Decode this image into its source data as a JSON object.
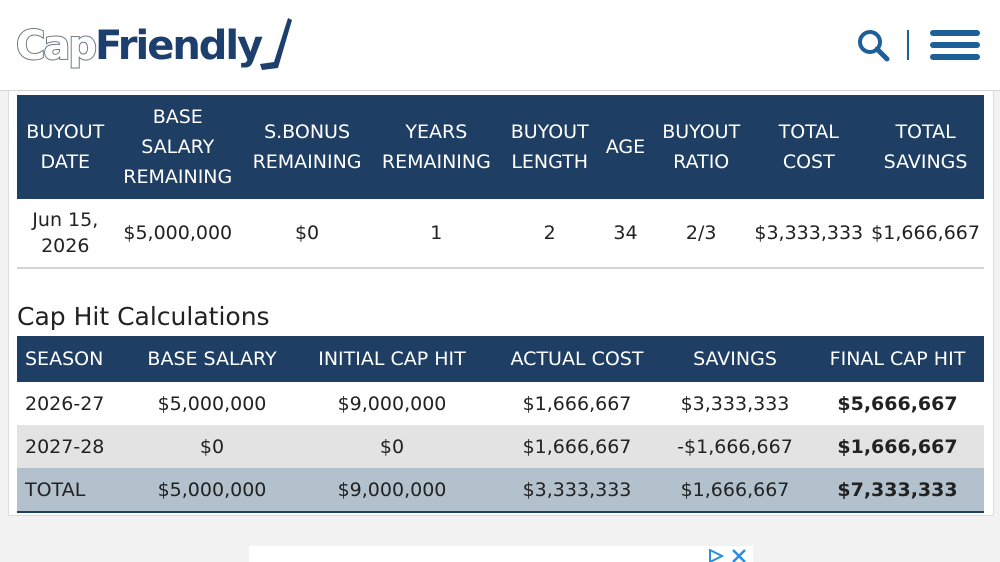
{
  "header": {
    "logo_part1": "Cap",
    "logo_part2": "Friendly",
    "icons": [
      "search-icon",
      "menu-icon"
    ],
    "accent_color": "#1c5f99"
  },
  "buyout_table": {
    "columns": [
      [
        "BUYOUT",
        "DATE"
      ],
      [
        "BASE",
        "SALARY",
        "REMAINING"
      ],
      [
        "S.BONUS",
        "REMAINING"
      ],
      [
        "YEARS",
        "REMAINING"
      ],
      [
        "BUYOUT",
        "LENGTH"
      ],
      [
        "AGE"
      ],
      [
        "BUYOUT",
        "RATIO"
      ],
      [
        "TOTAL",
        "COST"
      ],
      [
        "TOTAL",
        "SAVINGS"
      ]
    ],
    "row": {
      "date_line1": "Jun 15,",
      "date_line2": "2026",
      "base_salary_remaining": "$5,000,000",
      "sbonus_remaining": "$0",
      "years_remaining": "1",
      "buyout_length": "2",
      "age": "34",
      "buyout_ratio": "2/3",
      "total_cost": "$3,333,333",
      "total_savings": "$1,666,667"
    }
  },
  "cap_hit": {
    "title": "Cap Hit Calculations",
    "columns": [
      "SEASON",
      "BASE SALARY",
      "INITIAL CAP HIT",
      "ACTUAL COST",
      "SAVINGS",
      "FINAL CAP HIT"
    ],
    "rows": [
      [
        "2026-27",
        "$5,000,000",
        "$9,000,000",
        "$1,666,667",
        "$3,333,333",
        "$5,666,667"
      ],
      [
        "2027-28",
        "$0",
        "$0",
        "$1,666,667",
        "-$1,666,667",
        "$1,666,667"
      ],
      [
        "TOTAL",
        "$5,000,000",
        "$9,000,000",
        "$3,333,333",
        "$1,666,667",
        "$7,333,333"
      ]
    ]
  },
  "ad": {
    "icons": [
      "ad-info-icon",
      "ad-close-icon"
    ]
  }
}
